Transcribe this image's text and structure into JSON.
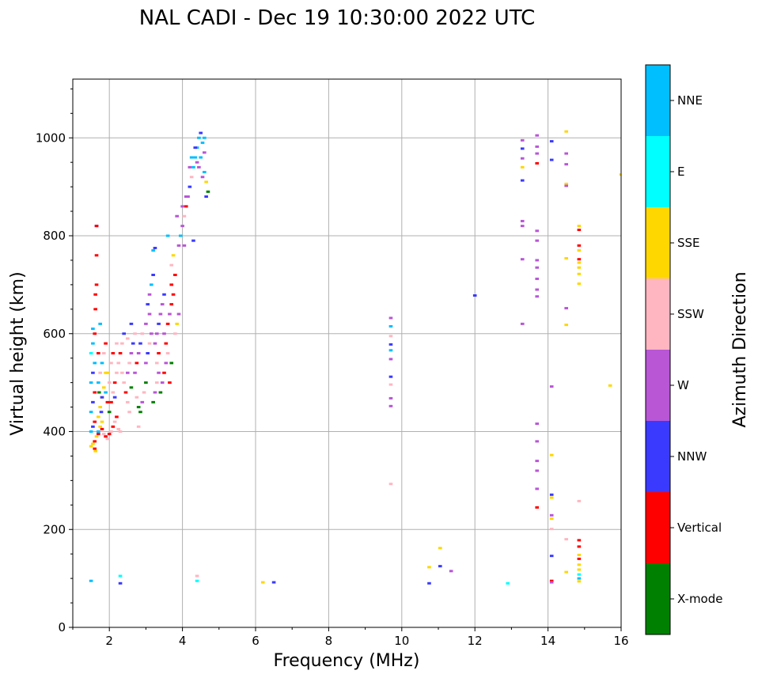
{
  "chart_data": {
    "type": "scatter",
    "title": "NAL CADI - Dec 19 10:30:00 2022 UTC",
    "xlabel": "Frequency (MHz)",
    "ylabel": "Virtual height (km)",
    "xlim": [
      1,
      16
    ],
    "ylim": [
      0,
      1120
    ],
    "xticks": [
      2,
      4,
      6,
      8,
      10,
      12,
      14,
      16
    ],
    "yticks": [
      0,
      200,
      400,
      600,
      800,
      1000
    ],
    "grid": true,
    "colorbar": {
      "title": "Azimuth Direction",
      "categories": [
        {
          "name": "X-mode",
          "color": "#008000"
        },
        {
          "name": "Vertical",
          "color": "#ff0000"
        },
        {
          "name": "NNW",
          "color": "#3a3aff"
        },
        {
          "name": "W",
          "color": "#b856d6"
        },
        {
          "name": "SSW",
          "color": "#ffb6c1"
        },
        {
          "name": "SSE",
          "color": "#ffd700"
        },
        {
          "name": "E",
          "color": "#00ffff"
        },
        {
          "name": "NNE",
          "color": "#00bfff"
        }
      ]
    },
    "marker_width_mhz": 0.1,
    "points": [
      [
        1.5,
        370,
        "SSE"
      ],
      [
        1.55,
        375,
        "SSE"
      ],
      [
        1.6,
        380,
        "Vertical"
      ],
      [
        1.65,
        390,
        "SSE"
      ],
      [
        1.7,
        395,
        "Vertical"
      ],
      [
        1.6,
        365,
        "Vertical"
      ],
      [
        1.62,
        360,
        "SSE"
      ],
      [
        1.5,
        400,
        "NNE"
      ],
      [
        1.55,
        410,
        "NNW"
      ],
      [
        1.6,
        420,
        "Vertical"
      ],
      [
        1.5,
        440,
        "NNE"
      ],
      [
        1.55,
        460,
        "NNW"
      ],
      [
        1.6,
        480,
        "Vertical"
      ],
      [
        1.5,
        500,
        "NNE"
      ],
      [
        1.55,
        520,
        "NNW"
      ],
      [
        1.6,
        540,
        "NNE"
      ],
      [
        1.5,
        560,
        "E"
      ],
      [
        1.55,
        580,
        "NNE"
      ],
      [
        1.6,
        600,
        "Vertical"
      ],
      [
        1.55,
        610,
        "NNE"
      ],
      [
        1.65,
        700,
        "Vertical"
      ],
      [
        1.65,
        760,
        "Vertical"
      ],
      [
        1.65,
        820,
        "NNW"
      ],
      [
        1.5,
        95,
        "NNE"
      ],
      [
        1.65,
        820,
        "Vertical"
      ],
      [
        1.62,
        650,
        "Vertical"
      ],
      [
        1.62,
        680,
        "Vertical"
      ],
      [
        1.7,
        400,
        "NNE"
      ],
      [
        1.75,
        410,
        "SSE"
      ],
      [
        1.8,
        405,
        "Vertical"
      ],
      [
        1.85,
        395,
        "SSW"
      ],
      [
        1.9,
        390,
        "Vertical"
      ],
      [
        1.95,
        385,
        "SSW"
      ],
      [
        2.0,
        395,
        "Vertical"
      ],
      [
        1.7,
        430,
        "SSE"
      ],
      [
        1.75,
        450,
        "SSE"
      ],
      [
        1.8,
        470,
        "SSE"
      ],
      [
        1.85,
        490,
        "SSE"
      ],
      [
        1.9,
        480,
        "NNE"
      ],
      [
        1.95,
        460,
        "Vertical"
      ],
      [
        2.0,
        440,
        "X-mode"
      ],
      [
        1.7,
        500,
        "NNE"
      ],
      [
        1.75,
        520,
        "SSW"
      ],
      [
        1.8,
        540,
        "NNE"
      ],
      [
        1.85,
        560,
        "SSW"
      ],
      [
        1.9,
        580,
        "Vertical"
      ],
      [
        1.95,
        520,
        "SSE"
      ],
      [
        2.0,
        500,
        "SSW"
      ],
      [
        1.75,
        620,
        "NNE"
      ],
      [
        1.8,
        470,
        "NNW"
      ],
      [
        1.7,
        560,
        "Vertical"
      ],
      [
        1.9,
        520,
        "SSE"
      ],
      [
        1.8,
        420,
        "SSE"
      ],
      [
        1.72,
        480,
        "X-mode"
      ],
      [
        1.78,
        440,
        "NNW"
      ],
      [
        2.05,
        400,
        "SSW"
      ],
      [
        2.1,
        410,
        "Vertical"
      ],
      [
        2.15,
        420,
        "SSW"
      ],
      [
        2.2,
        430,
        "Vertical"
      ],
      [
        2.25,
        405,
        "SSW"
      ],
      [
        2.3,
        400,
        "SSW"
      ],
      [
        2.05,
        460,
        "Vertical"
      ],
      [
        2.1,
        480,
        "SSW"
      ],
      [
        2.15,
        500,
        "Vertical"
      ],
      [
        2.2,
        520,
        "SSW"
      ],
      [
        2.25,
        540,
        "SSW"
      ],
      [
        2.3,
        560,
        "Vertical"
      ],
      [
        2.35,
        580,
        "SSW"
      ],
      [
        2.4,
        600,
        "NNW"
      ],
      [
        2.05,
        540,
        "SSW"
      ],
      [
        2.1,
        560,
        "Vertical"
      ],
      [
        2.15,
        470,
        "NNW"
      ],
      [
        2.2,
        580,
        "SSW"
      ],
      [
        2.35,
        520,
        "SSW"
      ],
      [
        2.4,
        500,
        "SSW"
      ],
      [
        2.45,
        480,
        "Vertical"
      ],
      [
        2.5,
        460,
        "SSW"
      ],
      [
        2.55,
        440,
        "SSW"
      ],
      [
        2.5,
        520,
        "W"
      ],
      [
        2.55,
        540,
        "SSW"
      ],
      [
        2.6,
        560,
        "W"
      ],
      [
        2.65,
        580,
        "NNW"
      ],
      [
        2.7,
        600,
        "SSW"
      ],
      [
        2.5,
        590,
        "SSW"
      ],
      [
        2.6,
        490,
        "X-mode"
      ],
      [
        2.7,
        520,
        "W"
      ],
      [
        2.75,
        540,
        "Vertical"
      ],
      [
        2.8,
        560,
        "W"
      ],
      [
        2.85,
        580,
        "NNW"
      ],
      [
        2.9,
        600,
        "SSW"
      ],
      [
        2.6,
        620,
        "NNW"
      ],
      [
        2.75,
        470,
        "SSW"
      ],
      [
        2.8,
        450,
        "X-mode"
      ],
      [
        2.85,
        440,
        "X-mode"
      ],
      [
        2.9,
        460,
        "W"
      ],
      [
        2.95,
        480,
        "SSW"
      ],
      [
        3.0,
        500,
        "X-mode"
      ],
      [
        2.8,
        410,
        "SSW"
      ],
      [
        3.0,
        540,
        "W"
      ],
      [
        3.05,
        560,
        "NNW"
      ],
      [
        3.1,
        580,
        "SSW"
      ],
      [
        3.15,
        600,
        "W"
      ],
      [
        3.0,
        620,
        "W"
      ],
      [
        3.1,
        640,
        "W"
      ],
      [
        3.05,
        660,
        "NNW"
      ],
      [
        3.1,
        680,
        "W"
      ],
      [
        3.15,
        700,
        "NNE"
      ],
      [
        3.2,
        720,
        "NNW"
      ],
      [
        3.2,
        460,
        "X-mode"
      ],
      [
        3.25,
        480,
        "W"
      ],
      [
        3.3,
        500,
        "SSW"
      ],
      [
        3.35,
        520,
        "W"
      ],
      [
        3.3,
        540,
        "SSW"
      ],
      [
        3.35,
        560,
        "Vertical"
      ],
      [
        3.25,
        580,
        "W"
      ],
      [
        3.3,
        600,
        "W"
      ],
      [
        3.35,
        620,
        "NNW"
      ],
      [
        3.4,
        640,
        "W"
      ],
      [
        3.45,
        660,
        "W"
      ],
      [
        3.5,
        680,
        "NNW"
      ],
      [
        3.2,
        770,
        "NNE"
      ],
      [
        3.25,
        775,
        "NNW"
      ],
      [
        3.4,
        480,
        "X-mode"
      ],
      [
        3.45,
        500,
        "W"
      ],
      [
        3.5,
        520,
        "Vertical"
      ],
      [
        3.55,
        540,
        "W"
      ],
      [
        3.6,
        560,
        "SSW"
      ],
      [
        3.55,
        580,
        "Vertical"
      ],
      [
        3.5,
        600,
        "W"
      ],
      [
        3.6,
        620,
        "Vertical"
      ],
      [
        3.65,
        640,
        "W"
      ],
      [
        3.7,
        660,
        "Vertical"
      ],
      [
        3.75,
        680,
        "Vertical"
      ],
      [
        3.7,
        700,
        "Vertical"
      ],
      [
        3.8,
        720,
        "Vertical"
      ],
      [
        3.6,
        800,
        "NNE"
      ],
      [
        3.7,
        740,
        "SSW"
      ],
      [
        3.75,
        760,
        "SSE"
      ],
      [
        3.8,
        600,
        "SSW"
      ],
      [
        3.85,
        620,
        "SSE"
      ],
      [
        3.9,
        640,
        "W"
      ],
      [
        3.65,
        500,
        "Vertical"
      ],
      [
        3.7,
        540,
        "X-mode"
      ],
      [
        3.9,
        780,
        "W"
      ],
      [
        3.95,
        800,
        "NNE"
      ],
      [
        4.0,
        820,
        "W"
      ],
      [
        4.05,
        840,
        "SSW"
      ],
      [
        4.1,
        860,
        "Vertical"
      ],
      [
        4.15,
        880,
        "W"
      ],
      [
        4.2,
        900,
        "NNW"
      ],
      [
        3.85,
        840,
        "W"
      ],
      [
        4.25,
        920,
        "SSW"
      ],
      [
        4.3,
        940,
        "NNE"
      ],
      [
        4.35,
        960,
        "NNE"
      ],
      [
        4.4,
        980,
        "NNE"
      ],
      [
        4.45,
        1000,
        "NNE"
      ],
      [
        4.5,
        1010,
        "NNW"
      ],
      [
        4.55,
        990,
        "NNE"
      ],
      [
        4.6,
        970,
        "W"
      ],
      [
        4.6,
        930,
        "NNE"
      ],
      [
        4.65,
        910,
        "SSE"
      ],
      [
        4.7,
        890,
        "X-mode"
      ],
      [
        4.65,
        880,
        "NNW"
      ],
      [
        4.4,
        950,
        "W"
      ],
      [
        4.5,
        960,
        "NNE"
      ],
      [
        4.35,
        980,
        "NNW"
      ],
      [
        4.3,
        790,
        "NNW"
      ],
      [
        4.05,
        780,
        "W"
      ],
      [
        4.0,
        860,
        "W"
      ],
      [
        4.1,
        880,
        "W"
      ],
      [
        4.2,
        940,
        "W"
      ],
      [
        4.25,
        960,
        "NNE"
      ],
      [
        4.45,
        940,
        "W"
      ],
      [
        4.55,
        920,
        "W"
      ],
      [
        4.6,
        1000,
        "NNE"
      ],
      [
        4.4,
        95,
        "E"
      ],
      [
        4.4,
        105,
        "SSW"
      ],
      [
        2.3,
        90,
        "NNW"
      ],
      [
        2.3,
        105,
        "E"
      ],
      [
        6.2,
        92,
        "SSE"
      ],
      [
        6.5,
        92,
        "NNW"
      ],
      [
        9.7,
        632,
        "W"
      ],
      [
        9.7,
        615,
        "NNE"
      ],
      [
        9.7,
        595,
        "SSW"
      ],
      [
        9.7,
        578,
        "NNW"
      ],
      [
        9.7,
        566,
        "NNE"
      ],
      [
        9.7,
        548,
        "W"
      ],
      [
        9.7,
        512,
        "NNW"
      ],
      [
        9.7,
        496,
        "SSW"
      ],
      [
        9.7,
        468,
        "W"
      ],
      [
        9.7,
        452,
        "W"
      ],
      [
        9.7,
        293,
        "SSW"
      ],
      [
        10.75,
        90,
        "NNW"
      ],
      [
        10.75,
        123,
        "SSE"
      ],
      [
        11.05,
        125,
        "NNW"
      ],
      [
        11.05,
        162,
        "SSE"
      ],
      [
        11.35,
        115,
        "W"
      ],
      [
        12.0,
        678,
        "NNW"
      ],
      [
        12.9,
        90,
        "E"
      ],
      [
        13.3,
        995,
        "W"
      ],
      [
        13.3,
        978,
        "NNW"
      ],
      [
        13.3,
        958,
        "W"
      ],
      [
        13.3,
        940,
        "SSE"
      ],
      [
        13.3,
        913,
        "NNW"
      ],
      [
        13.3,
        830,
        "W"
      ],
      [
        13.3,
        820,
        "W"
      ],
      [
        13.3,
        752,
        "W"
      ],
      [
        13.3,
        620,
        "W"
      ],
      [
        13.7,
        1005,
        "W"
      ],
      [
        13.7,
        982,
        "W"
      ],
      [
        13.7,
        968,
        "W"
      ],
      [
        13.7,
        948,
        "Vertical"
      ],
      [
        13.7,
        810,
        "W"
      ],
      [
        13.7,
        790,
        "W"
      ],
      [
        13.7,
        750,
        "W"
      ],
      [
        13.7,
        735,
        "W"
      ],
      [
        13.7,
        712,
        "W"
      ],
      [
        13.7,
        690,
        "W"
      ],
      [
        13.7,
        676,
        "W"
      ],
      [
        13.7,
        416,
        "W"
      ],
      [
        13.7,
        380,
        "W"
      ],
      [
        13.7,
        340,
        "W"
      ],
      [
        13.7,
        320,
        "W"
      ],
      [
        13.7,
        283,
        "W"
      ],
      [
        13.7,
        245,
        "Vertical"
      ],
      [
        14.1,
        993,
        "NNW"
      ],
      [
        14.1,
        955,
        "NNW"
      ],
      [
        14.1,
        492,
        "W"
      ],
      [
        14.1,
        352,
        "SSE"
      ],
      [
        14.1,
        271,
        "NNW"
      ],
      [
        14.1,
        265,
        "SSE"
      ],
      [
        14.1,
        229,
        "W"
      ],
      [
        14.1,
        222,
        "SSE"
      ],
      [
        14.1,
        201,
        "SSW"
      ],
      [
        14.1,
        146,
        "NNW"
      ],
      [
        14.1,
        95,
        "Vertical"
      ],
      [
        14.1,
        92,
        "W"
      ],
      [
        14.5,
        1013,
        "SSE"
      ],
      [
        14.5,
        968,
        "W"
      ],
      [
        14.5,
        946,
        "W"
      ],
      [
        14.5,
        906,
        "SSE"
      ],
      [
        14.5,
        902,
        "W"
      ],
      [
        14.5,
        754,
        "SSE"
      ],
      [
        14.5,
        652,
        "W"
      ],
      [
        14.5,
        618,
        "SSE"
      ],
      [
        14.5,
        180,
        "SSW"
      ],
      [
        14.5,
        113,
        "SSE"
      ],
      [
        14.85,
        820,
        "SSE"
      ],
      [
        14.85,
        812,
        "Vertical"
      ],
      [
        14.85,
        780,
        "Vertical"
      ],
      [
        14.85,
        770,
        "SSE"
      ],
      [
        14.85,
        752,
        "Vertical"
      ],
      [
        14.85,
        745,
        "SSE"
      ],
      [
        14.85,
        735,
        "SSE"
      ],
      [
        14.85,
        722,
        "SSE"
      ],
      [
        14.85,
        702,
        "SSE"
      ],
      [
        14.85,
        258,
        "SSW"
      ],
      [
        14.85,
        178,
        "Vertical"
      ],
      [
        14.85,
        165,
        "Vertical"
      ],
      [
        14.85,
        148,
        "SSE"
      ],
      [
        14.85,
        140,
        "Vertical"
      ],
      [
        14.85,
        128,
        "SSE"
      ],
      [
        14.85,
        118,
        "SSE"
      ],
      [
        14.85,
        108,
        "E"
      ],
      [
        14.85,
        100,
        "NNE"
      ],
      [
        14.85,
        94,
        "SSE"
      ],
      [
        15.7,
        494,
        "SSE"
      ],
      [
        16.0,
        925,
        "SSE"
      ]
    ]
  }
}
